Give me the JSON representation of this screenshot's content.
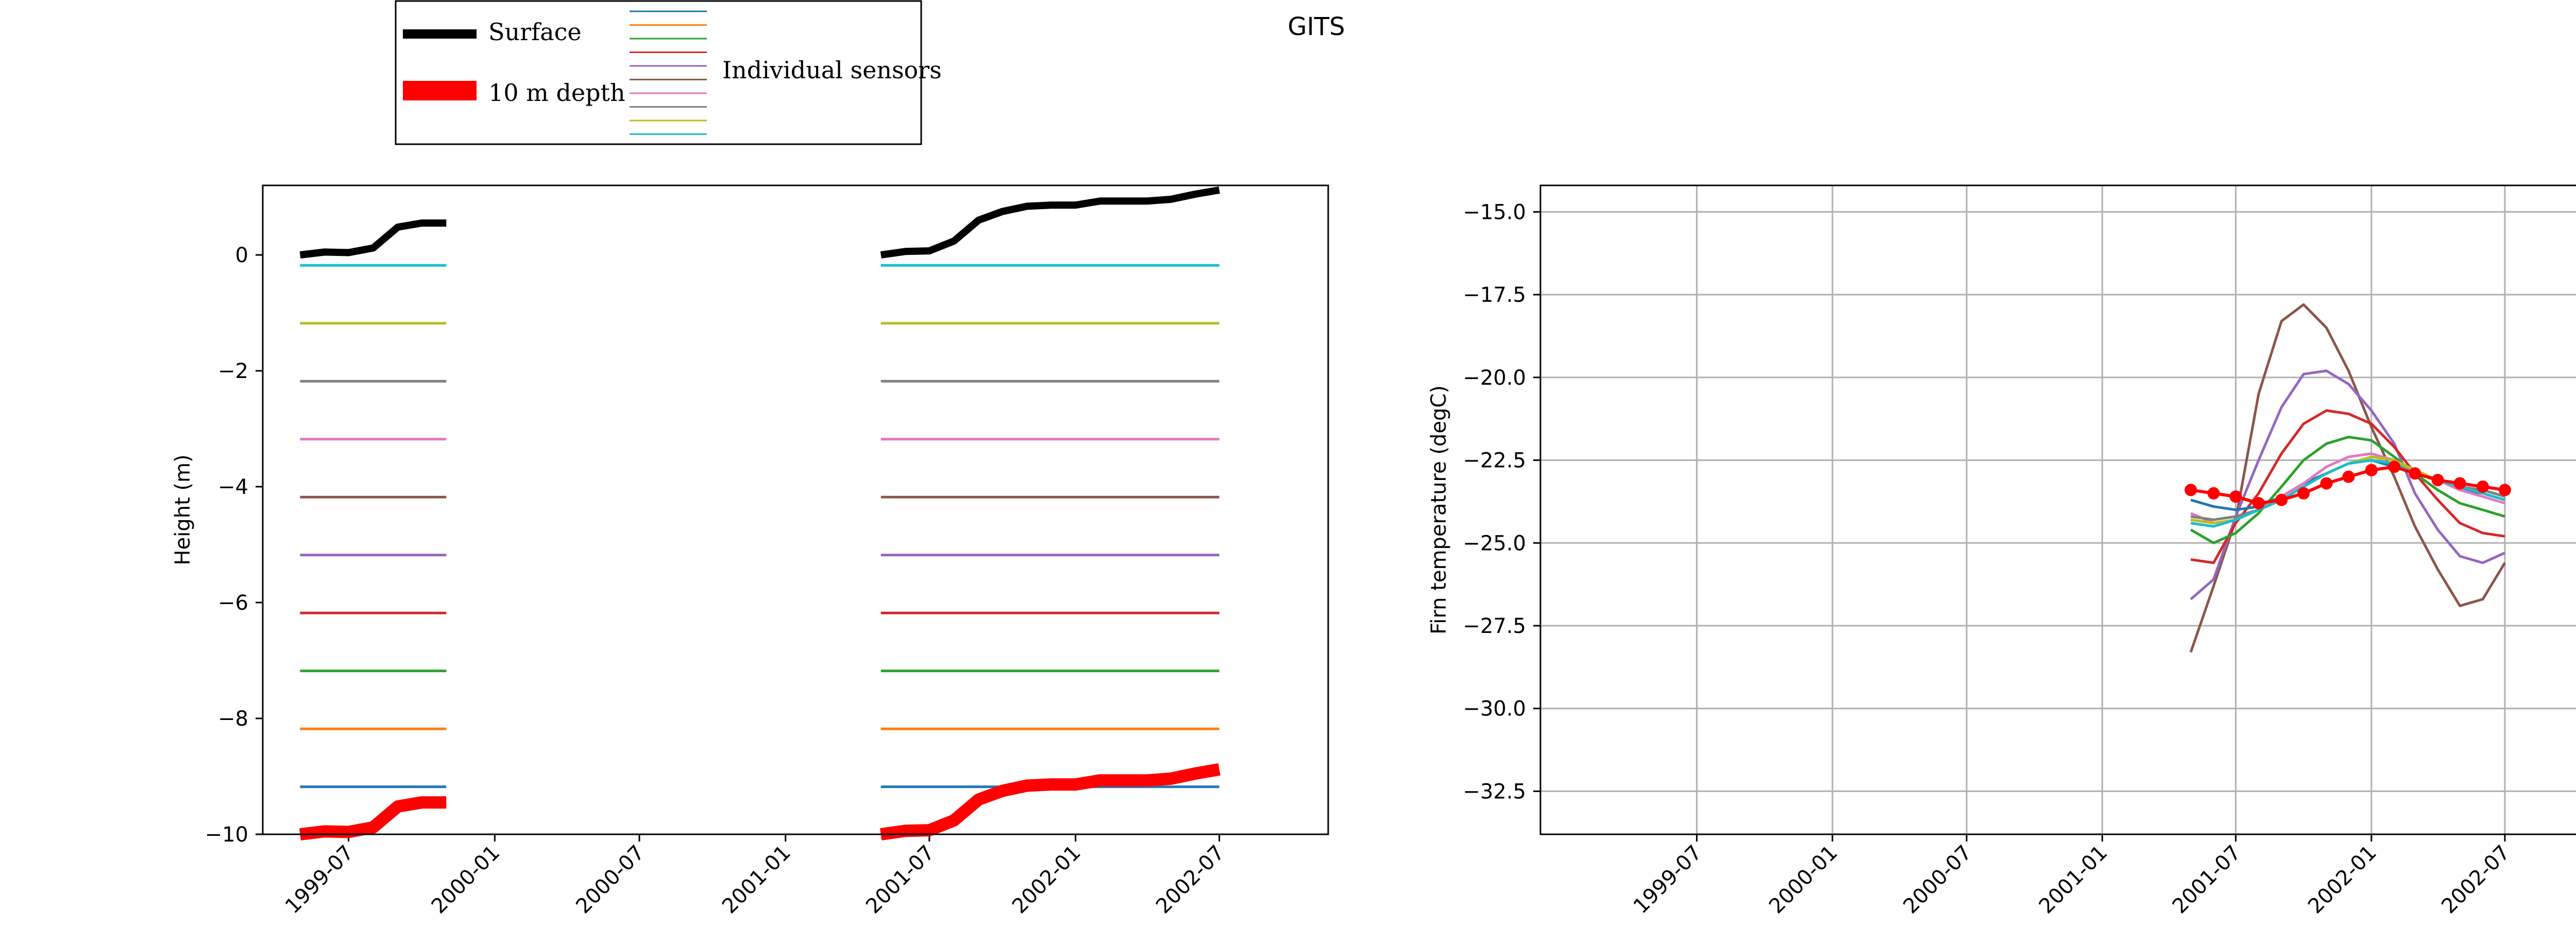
{
  "figure": {
    "title": "GITS"
  },
  "legend": {
    "surface_label": "Surface",
    "depth_label": "10 m depth",
    "sensors_label": "Individual sensors",
    "sensor_colors": [
      "#1f77b4",
      "#ff7f0e",
      "#2ca02c",
      "#d62728",
      "#9467bd",
      "#8c564b",
      "#e377c2",
      "#7f7f7f",
      "#bcbd22",
      "#17becf"
    ]
  },
  "chart_data": [
    {
      "type": "line",
      "title": "",
      "xlabel": "",
      "ylabel": "Height (m)",
      "xlim": [
        "1999-03-15",
        "2002-11-15"
      ],
      "ylim": [
        -10,
        1.2
      ],
      "xticks": [
        "1999-07",
        "2000-01",
        "2000-07",
        "2001-01",
        "2001-07",
        "2002-01",
        "2002-07"
      ],
      "yticks": [
        0,
        -2,
        -4,
        -6,
        -8,
        -10
      ],
      "grid": false,
      "segments": [
        {
          "x": [
            "1999-05",
            "1999-06",
            "1999-07",
            "1999-08",
            "1999-09",
            "1999-10",
            "1999-11"
          ],
          "surface": [
            0.0,
            0.05,
            0.04,
            0.12,
            0.48,
            0.55,
            0.55
          ],
          "depth_10m": [
            -10.0,
            -9.95,
            -9.96,
            -9.88,
            -9.52,
            -9.45,
            -9.45
          ]
        },
        {
          "x": [
            "2001-05",
            "2001-06",
            "2001-07",
            "2001-08",
            "2001-09",
            "2001-10",
            "2001-11",
            "2001-12",
            "2002-01",
            "2002-02",
            "2002-03",
            "2002-04",
            "2002-05",
            "2002-06",
            "2002-07"
          ],
          "surface": [
            0.0,
            0.06,
            0.07,
            0.24,
            0.6,
            0.75,
            0.84,
            0.86,
            0.86,
            0.93,
            0.93,
            0.93,
            0.96,
            1.05,
            1.12
          ],
          "depth_10m": [
            -10.0,
            -9.94,
            -9.93,
            -9.76,
            -9.4,
            -9.25,
            -9.16,
            -9.14,
            -9.14,
            -9.07,
            -9.07,
            -9.07,
            -9.04,
            -8.95,
            -8.88
          ]
        }
      ],
      "sensors": [
        {
          "color": "#1f77b4",
          "depth": -9.18
        },
        {
          "color": "#ff7f0e",
          "depth": -8.18
        },
        {
          "color": "#2ca02c",
          "depth": -7.18
        },
        {
          "color": "#d62728",
          "depth": -6.18
        },
        {
          "color": "#9467bd",
          "depth": -5.18
        },
        {
          "color": "#8c564b",
          "depth": -4.18
        },
        {
          "color": "#e377c2",
          "depth": -3.18
        },
        {
          "color": "#7f7f7f",
          "depth": -2.18
        },
        {
          "color": "#bcbd22",
          "depth": -1.18
        },
        {
          "color": "#17becf",
          "depth": -0.18
        }
      ]
    },
    {
      "type": "line",
      "title": "",
      "xlabel": "",
      "ylabel": "Firn temperature (degC)",
      "xlim": [
        "1998-12-01",
        "2002-11-15"
      ],
      "ylim": [
        -33.8,
        -14.2
      ],
      "xticks": [
        "1999-07",
        "2000-01",
        "2000-07",
        "2001-01",
        "2001-07",
        "2002-01",
        "2002-07"
      ],
      "yticks": [
        -15.0,
        -17.5,
        -20.0,
        -22.5,
        -25.0,
        -27.5,
        -30.0,
        -32.5
      ],
      "ytick_labels": [
        "−15.0",
        "−17.5",
        "−20.0",
        "−22.5",
        "−25.0",
        "−27.5",
        "−30.0",
        "−32.5"
      ],
      "grid": true,
      "x": [
        "2001-05",
        "2001-06",
        "2001-07",
        "2001-08",
        "2001-09",
        "2001-10",
        "2001-11",
        "2001-12",
        "2002-01",
        "2002-02",
        "2002-03",
        "2002-04",
        "2002-05",
        "2002-06",
        "2002-07"
      ],
      "series": [
        {
          "color": "#8c564b",
          "values": [
            -28.3,
            -26.3,
            -24.3,
            -20.5,
            -18.3,
            -17.8,
            -18.5,
            -19.8,
            -21.5,
            -23.0,
            -24.5,
            -25.8,
            -26.9,
            -26.7,
            -25.6
          ]
        },
        {
          "color": "#9467bd",
          "values": [
            -26.7,
            -26.1,
            -24.2,
            -22.5,
            -20.9,
            -19.9,
            -19.8,
            -20.2,
            -21.0,
            -22.0,
            -23.5,
            -24.6,
            -25.4,
            -25.6,
            -25.3
          ]
        },
        {
          "color": "#d62728",
          "values": [
            -25.5,
            -25.6,
            -24.4,
            -23.5,
            -22.3,
            -21.4,
            -21.0,
            -21.1,
            -21.4,
            -22.1,
            -22.9,
            -23.7,
            -24.4,
            -24.7,
            -24.8
          ]
        },
        {
          "color": "#2ca02c",
          "values": [
            -24.6,
            -25.0,
            -24.7,
            -24.1,
            -23.3,
            -22.5,
            -22.0,
            -21.8,
            -21.9,
            -22.4,
            -22.9,
            -23.4,
            -23.8,
            -24.0,
            -24.2
          ]
        },
        {
          "color": "#1f77b4",
          "values": [
            -23.7,
            -23.9,
            -24.0,
            -23.9,
            -23.6,
            -23.2,
            -22.9,
            -22.6,
            -22.5,
            -22.7,
            -22.9,
            -23.1,
            -23.4,
            -23.5,
            -23.7
          ]
        },
        {
          "color": "#e377c2",
          "values": [
            -24.1,
            -24.4,
            -24.3,
            -24.0,
            -23.6,
            -23.2,
            -22.7,
            -22.4,
            -22.3,
            -22.5,
            -22.8,
            -23.1,
            -23.4,
            -23.6,
            -23.8
          ]
        },
        {
          "color": "#ff7f0e",
          "values": [
            -24.3,
            -24.4,
            -24.3,
            -24.0,
            -23.7,
            -23.3,
            -22.9,
            -22.6,
            -22.5,
            -22.6,
            -22.8,
            -23.1,
            -23.3,
            -23.5,
            -23.7
          ]
        },
        {
          "color": "#7f7f7f",
          "values": [
            -24.2,
            -24.3,
            -24.2,
            -24.0,
            -23.7,
            -23.3,
            -22.9,
            -22.6,
            -22.4,
            -22.5,
            -22.8,
            -23.1,
            -23.3,
            -23.4,
            -23.6
          ]
        },
        {
          "color": "#bcbd22",
          "values": [
            -24.3,
            -24.4,
            -24.3,
            -24.0,
            -23.7,
            -23.3,
            -22.9,
            -22.6,
            -22.4,
            -22.5,
            -22.8,
            -23.1,
            -23.3,
            -23.5,
            -23.7
          ]
        },
        {
          "color": "#17becf",
          "values": [
            -24.4,
            -24.5,
            -24.3,
            -24.0,
            -23.7,
            -23.3,
            -22.9,
            -22.6,
            -22.5,
            -22.6,
            -22.9,
            -23.1,
            -23.3,
            -23.5,
            -23.7
          ]
        }
      ],
      "depth_10m": {
        "color": "#ff0000",
        "values": [
          -23.4,
          -23.5,
          -23.6,
          -23.8,
          -23.7,
          -23.5,
          -23.2,
          -23.0,
          -22.8,
          -22.7,
          -22.9,
          -23.1,
          -23.2,
          -23.3,
          -23.4
        ]
      }
    }
  ]
}
